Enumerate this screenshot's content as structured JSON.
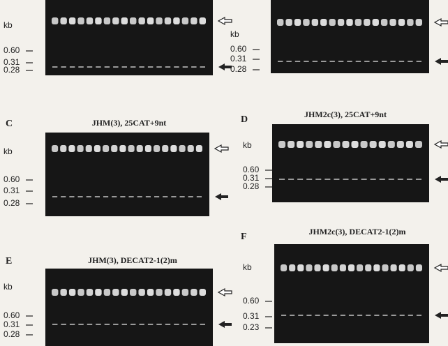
{
  "panels": [
    {
      "kb": "kb",
      "markers": [
        "0.60",
        "0.31",
        "0.28"
      ]
    },
    {
      "kb": "kb",
      "markers": [
        "0.60",
        "0.31",
        "0.28"
      ]
    },
    {
      "letter": "C",
      "title": "JHM(3), 25CAT+9nt",
      "kb": "kb",
      "markers": [
        "0.60",
        "0.31",
        "0.28"
      ]
    },
    {
      "letter": "D",
      "title": "JHM2c(3), 25CAT+9nt",
      "kb": "kb",
      "markers": [
        "0.60",
        "0.31",
        "0.28"
      ]
    },
    {
      "letter": "E",
      "title": "JHM(3), DECAT2-1(2)m",
      "kb": "kb",
      "markers": [
        "0.60",
        "0.31",
        "0.28"
      ]
    },
    {
      "letter": "F",
      "title": "JHM2c(3), DECAT2-1(2)m",
      "kb": "kb",
      "markers": [
        "0.60",
        "0.31",
        "0.23"
      ]
    }
  ]
}
